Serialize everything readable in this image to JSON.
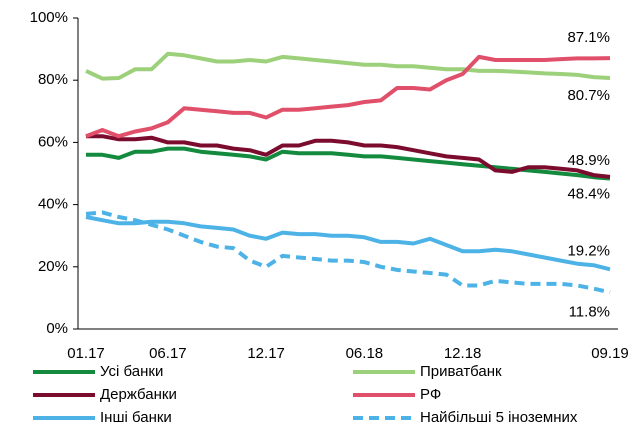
{
  "chart_data": {
    "type": "line",
    "categories": [
      "01.17",
      null,
      null,
      null,
      null,
      "06.17",
      null,
      null,
      null,
      null,
      null,
      "12.17",
      null,
      null,
      null,
      null,
      null,
      "06.18",
      null,
      null,
      null,
      null,
      null,
      "12.18",
      null,
      null,
      null,
      null,
      null,
      null,
      null,
      null,
      "09.19"
    ],
    "ylim": [
      0,
      100
    ],
    "yticks": [
      {
        "value": 0,
        "label": "0%"
      },
      {
        "value": 20,
        "label": "20%"
      },
      {
        "value": 40,
        "label": "40%"
      },
      {
        "value": 60,
        "label": "60%"
      },
      {
        "value": 80,
        "label": "80%"
      },
      {
        "value": 100,
        "label": "100%"
      }
    ],
    "grid": false,
    "legend": "bottom",
    "series": [
      {
        "name": "Усі банки",
        "color": "#138a3e",
        "dash": false,
        "values": [
          56,
          56,
          55,
          57,
          57,
          58,
          58,
          57,
          56.5,
          56,
          55.5,
          54.5,
          57,
          56.5,
          56.5,
          56.5,
          56,
          55.5,
          55.5,
          55,
          54.5,
          54,
          53.5,
          53,
          52.5,
          52,
          51.5,
          51,
          50.5,
          50,
          49.5,
          48.8,
          48.4
        ],
        "value_labels": [
          null,
          null,
          null,
          null,
          null,
          null,
          null,
          null,
          null,
          null,
          null,
          null,
          null,
          null,
          null,
          null,
          null,
          null,
          null,
          null,
          null,
          null,
          null,
          null,
          null,
          null,
          null,
          null,
          null,
          null,
          null,
          null,
          "48.4%"
        ]
      },
      {
        "name": "Приватбанк",
        "color": "#9dd07a",
        "dash": false,
        "values": [
          83,
          80.5,
          80.7,
          83.5,
          83.5,
          88.5,
          88,
          87,
          86,
          86,
          86.5,
          86,
          87.5,
          87,
          86.5,
          86,
          85.5,
          85,
          85,
          84.5,
          84.5,
          84,
          83.5,
          83.5,
          83,
          83,
          82.8,
          82.5,
          82.2,
          82,
          81.7,
          81,
          80.7
        ],
        "value_labels": [
          null,
          null,
          null,
          null,
          null,
          null,
          null,
          null,
          null,
          null,
          null,
          null,
          null,
          null,
          null,
          null,
          null,
          null,
          null,
          null,
          null,
          null,
          null,
          null,
          null,
          null,
          null,
          null,
          null,
          null,
          null,
          null,
          "80.7%"
        ]
      },
      {
        "name": "Держбанки",
        "color": "#7b0c2e",
        "dash": false,
        "values": [
          62,
          62,
          61,
          61,
          61.5,
          60,
          60,
          59,
          59,
          58,
          57.5,
          56,
          59,
          59,
          60.5,
          60.5,
          60,
          59,
          59,
          58.5,
          57.5,
          56.5,
          55.5,
          55,
          54.5,
          51,
          50.5,
          52,
          52,
          51.5,
          51,
          49.5,
          48.9
        ],
        "value_labels": [
          null,
          null,
          null,
          null,
          null,
          null,
          null,
          null,
          null,
          null,
          null,
          null,
          null,
          null,
          null,
          null,
          null,
          null,
          null,
          null,
          null,
          null,
          null,
          null,
          null,
          null,
          null,
          null,
          null,
          null,
          null,
          null,
          "48.9%"
        ]
      },
      {
        "name": "РФ",
        "color": "#e0506a",
        "dash": false,
        "values": [
          62,
          64,
          62,
          63.5,
          64.5,
          66.5,
          71,
          70.5,
          70,
          69.5,
          69.5,
          68,
          70.5,
          70.5,
          71,
          71.5,
          72,
          73,
          73.5,
          77.5,
          77.5,
          77,
          80,
          82,
          87.5,
          86.5,
          86.5,
          86.5,
          86.5,
          86.8,
          87,
          87,
          87.1
        ],
        "value_labels": [
          null,
          null,
          null,
          null,
          null,
          null,
          null,
          null,
          null,
          null,
          null,
          null,
          null,
          null,
          null,
          null,
          null,
          null,
          null,
          null,
          null,
          null,
          null,
          null,
          null,
          null,
          null,
          null,
          null,
          null,
          null,
          null,
          "87.1%"
        ]
      },
      {
        "name": "Інші банки",
        "color": "#4db3e6",
        "dash": false,
        "values": [
          36,
          35,
          34,
          34,
          34.5,
          34.5,
          34,
          33,
          32.5,
          32,
          30,
          29,
          31,
          30.5,
          30.5,
          30,
          30,
          29.5,
          28,
          28,
          27.5,
          29,
          27,
          25,
          25,
          25.5,
          25,
          24,
          23,
          22,
          21,
          20.5,
          19.2
        ],
        "value_labels": [
          null,
          null,
          null,
          null,
          null,
          null,
          null,
          null,
          null,
          null,
          null,
          null,
          null,
          null,
          null,
          null,
          null,
          null,
          null,
          null,
          null,
          null,
          null,
          null,
          null,
          null,
          null,
          null,
          null,
          null,
          null,
          null,
          "19.2%"
        ]
      },
      {
        "name": "Найбільші 5 іноземних",
        "color": "#4db3e6",
        "dash": true,
        "values": [
          37,
          37.5,
          36,
          35,
          33.5,
          32,
          30,
          28,
          26.5,
          26,
          22,
          20,
          23.5,
          23,
          22.5,
          22,
          22,
          21.5,
          20,
          19,
          18.5,
          18,
          17.5,
          14,
          14,
          15.5,
          15,
          14.5,
          14.5,
          14.5,
          14,
          13,
          11.8
        ],
        "value_labels": [
          null,
          null,
          null,
          null,
          null,
          null,
          null,
          null,
          null,
          null,
          null,
          null,
          null,
          null,
          null,
          null,
          null,
          null,
          null,
          null,
          null,
          null,
          null,
          null,
          null,
          null,
          null,
          null,
          null,
          null,
          null,
          null,
          "11.8%"
        ]
      }
    ]
  }
}
